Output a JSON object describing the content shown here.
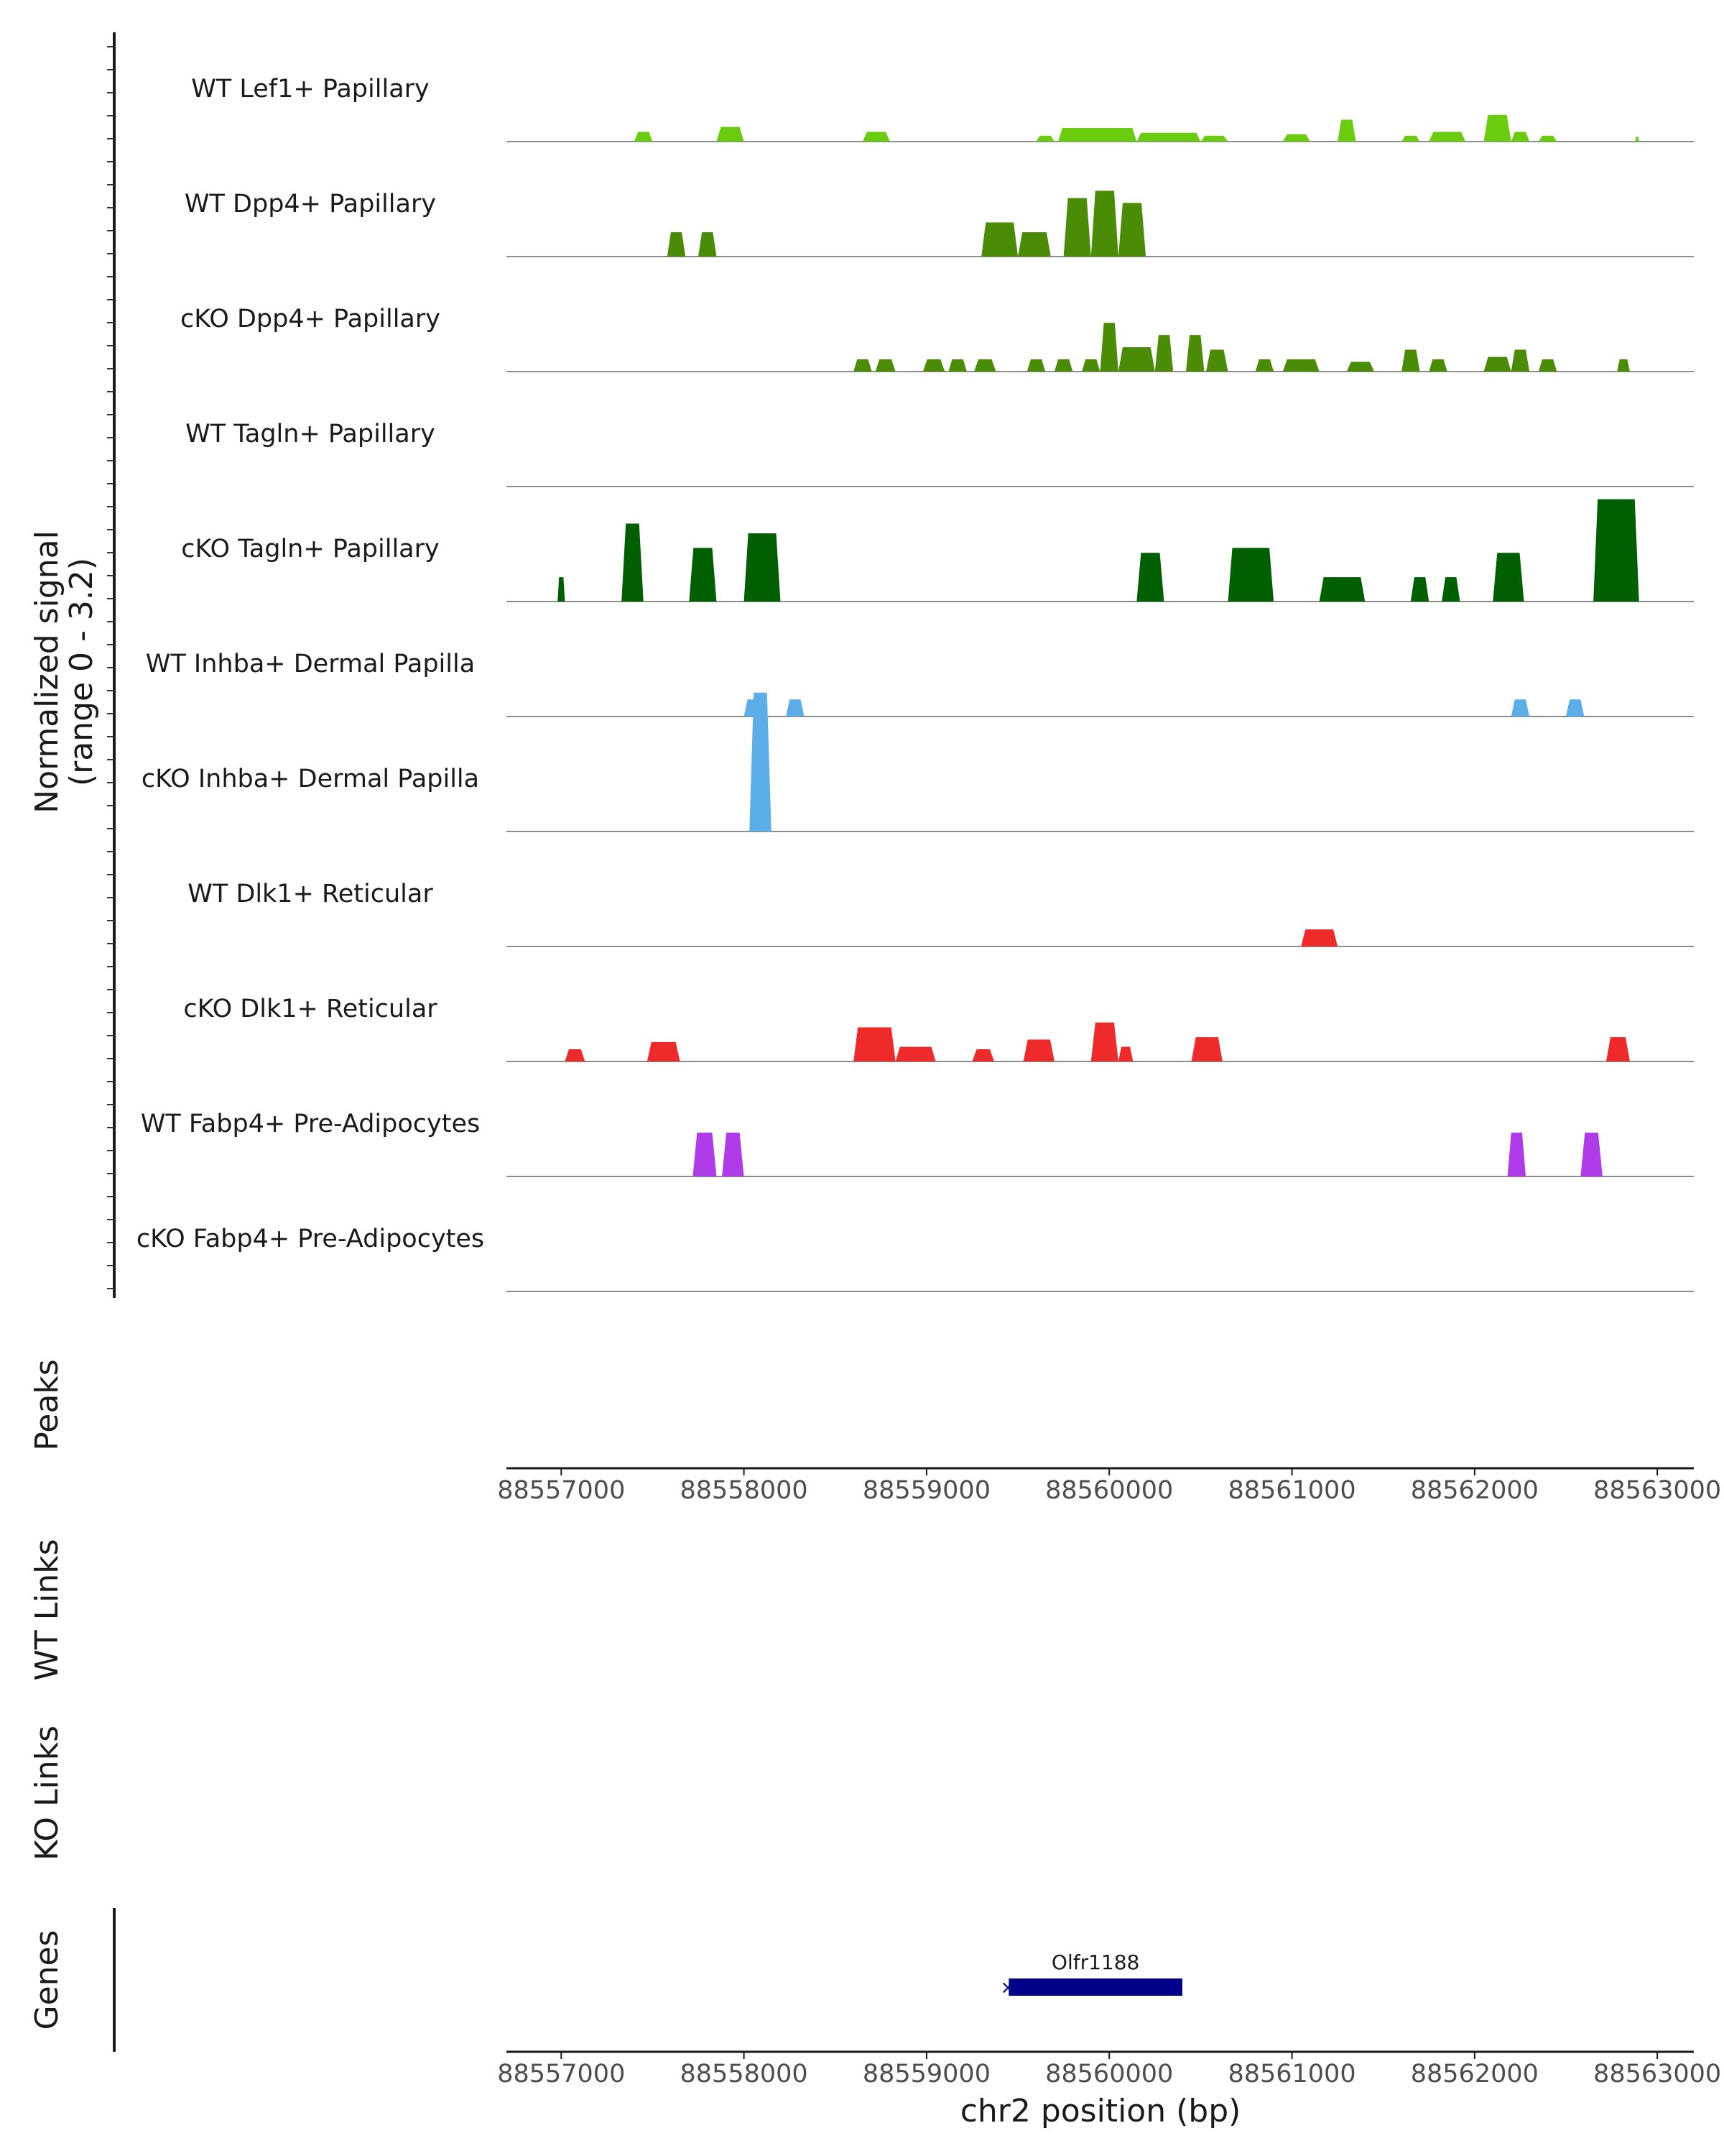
{
  "chart_data": {
    "type": "area",
    "title": "",
    "ylabel_line1": "Normalized signal",
    "ylabel_line2": "(range 0 - 3.2)",
    "y_range": [
      0,
      3.2
    ],
    "xlabel": "chr2 position (bp)",
    "x_range": [
      88556700,
      88563200
    ],
    "x_ticks": [
      88557000,
      88558000,
      88559000,
      88560000,
      88561000,
      88562000,
      88563000
    ],
    "x_tick_labels": [
      "88557000",
      "88558000",
      "88559000",
      "88560000",
      "88561000",
      "88562000",
      "88563000"
    ],
    "tracks": [
      {
        "name": "WT Lef1+ Papillary",
        "color": "#6ACC0E",
        "peaks": [
          [
            88557400,
            88557500,
            0.2
          ],
          [
            88557850,
            88558000,
            0.3
          ],
          [
            88558650,
            88558800,
            0.2
          ],
          [
            88559600,
            88559700,
            0.12
          ],
          [
            88559720,
            88560150,
            0.28
          ],
          [
            88560150,
            88560500,
            0.18
          ],
          [
            88560500,
            88560650,
            0.12
          ],
          [
            88560950,
            88561100,
            0.15
          ],
          [
            88561250,
            88561350,
            0.45
          ],
          [
            88561600,
            88561700,
            0.12
          ],
          [
            88561750,
            88561950,
            0.2
          ],
          [
            88562050,
            88562200,
            0.55
          ],
          [
            88562200,
            88562300,
            0.2
          ],
          [
            88562350,
            88562450,
            0.12
          ],
          [
            88562880,
            88562900,
            0.1
          ]
        ]
      },
      {
        "name": "WT Dpp4+ Papillary",
        "color": "#4A8C06",
        "peaks": [
          [
            88557580,
            88557680,
            0.5
          ],
          [
            88557750,
            88557850,
            0.5
          ],
          [
            88559300,
            88559500,
            0.7
          ],
          [
            88559500,
            88559680,
            0.5
          ],
          [
            88559750,
            88559900,
            1.2
          ],
          [
            88559900,
            88560050,
            1.35
          ],
          [
            88560050,
            88560200,
            1.1
          ]
        ]
      },
      {
        "name": "cKO Dpp4+ Papillary",
        "color": "#4A8C06",
        "peaks": [
          [
            88558600,
            88558700,
            0.25
          ],
          [
            88558720,
            88558830,
            0.25
          ],
          [
            88558980,
            88559100,
            0.25
          ],
          [
            88559120,
            88559220,
            0.25
          ],
          [
            88559260,
            88559380,
            0.25
          ],
          [
            88559550,
            88559650,
            0.25
          ],
          [
            88559700,
            88559800,
            0.25
          ],
          [
            88559850,
            88559950,
            0.25
          ],
          [
            88559950,
            88560050,
            1.0
          ],
          [
            88560050,
            88560250,
            0.5
          ],
          [
            88560250,
            88560350,
            0.75
          ],
          [
            88560420,
            88560520,
            0.75
          ],
          [
            88560530,
            88560650,
            0.45
          ],
          [
            88560800,
            88560900,
            0.25
          ],
          [
            88560950,
            88561150,
            0.25
          ],
          [
            88561300,
            88561450,
            0.2
          ],
          [
            88561600,
            88561700,
            0.45
          ],
          [
            88561750,
            88561850,
            0.25
          ],
          [
            88562050,
            88562200,
            0.3
          ],
          [
            88562200,
            88562300,
            0.45
          ],
          [
            88562350,
            88562450,
            0.25
          ],
          [
            88562780,
            88562850,
            0.25
          ]
        ]
      },
      {
        "name": "WT Tagln+ Papillary",
        "color": "#005F00",
        "peaks": []
      },
      {
        "name": "cKO Tagln+ Papillary",
        "color": "#005F00",
        "peaks": [
          [
            88556980,
            88557020,
            0.5
          ],
          [
            88557330,
            88557450,
            1.6
          ],
          [
            88557700,
            88557850,
            1.1
          ],
          [
            88558000,
            88558200,
            1.4
          ],
          [
            88560150,
            88560300,
            1.0
          ],
          [
            88560650,
            88560900,
            1.1
          ],
          [
            88561150,
            88561400,
            0.5
          ],
          [
            88561650,
            88561750,
            0.5
          ],
          [
            88561820,
            88561920,
            0.5
          ],
          [
            88562100,
            88562270,
            1.0
          ],
          [
            88562650,
            88562900,
            2.1
          ]
        ]
      },
      {
        "name": "WT Inhba+ Dermal Papilla",
        "color": "#5BAEE8",
        "peaks": [
          [
            88558000,
            88558100,
            0.35
          ],
          [
            88558230,
            88558330,
            0.35
          ],
          [
            88562200,
            88562300,
            0.35
          ],
          [
            88562500,
            88562600,
            0.35
          ]
        ]
      },
      {
        "name": "cKO Inhba+ Dermal Papilla",
        "color": "#5BAEE8",
        "peaks": [
          [
            88558030,
            88558150,
            2.85
          ]
        ]
      },
      {
        "name": "WT Dlk1+ Reticular",
        "color": "#EE2A2A",
        "peaks": [
          [
            88561050,
            88561250,
            0.35
          ]
        ]
      },
      {
        "name": "cKO Dlk1+ Reticular",
        "color": "#EE2A2A",
        "peaks": [
          [
            88557020,
            88557130,
            0.25
          ],
          [
            88557470,
            88557650,
            0.4
          ],
          [
            88558600,
            88558830,
            0.7
          ],
          [
            88558830,
            88559050,
            0.3
          ],
          [
            88559250,
            88559370,
            0.25
          ],
          [
            88559530,
            88559700,
            0.45
          ],
          [
            88559900,
            88560050,
            0.8
          ],
          [
            88560050,
            88560130,
            0.3
          ],
          [
            88560450,
            88560620,
            0.5
          ],
          [
            88562720,
            88562850,
            0.5
          ]
        ]
      },
      {
        "name": "WT Fabp4+ Pre-Adipocytes",
        "color": "#B03BE8",
        "peaks": [
          [
            88557720,
            88557850,
            0.9
          ],
          [
            88557880,
            88558000,
            0.9
          ],
          [
            88562180,
            88562280,
            0.9
          ],
          [
            88562580,
            88562700,
            0.9
          ]
        ]
      },
      {
        "name": "cKO Fabp4+ Pre-Adipocytes",
        "color": "#B03BE8",
        "peaks": []
      }
    ],
    "panels": {
      "peaks": "Peaks",
      "wt_links": "WT Links",
      "ko_links": "KO Links",
      "genes": "Genes"
    },
    "gene": {
      "name": "Olfr1188",
      "start": 88559450,
      "end": 88560400,
      "color": "#00008B"
    }
  }
}
